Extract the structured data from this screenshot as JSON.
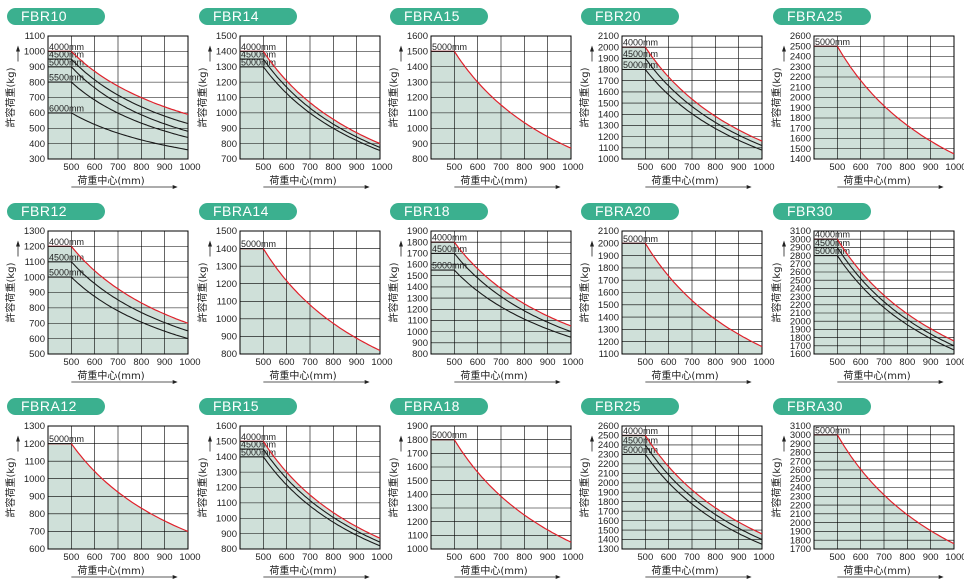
{
  "colors": {
    "badge": "#3bb08f",
    "fill": "#cfe0d9",
    "envelope": "#e0212b",
    "curve": "#1a1a1a",
    "grid": "#000000"
  },
  "common": {
    "xlabel": "荷重中心(mm)",
    "ylabel": "許容荷重(kg)",
    "xticks": [
      "500",
      "600",
      "700",
      "800",
      "900",
      "1000"
    ]
  },
  "chart_data": [
    {
      "title": "FBR10",
      "type": "line",
      "ylim": [
        300,
        1100
      ],
      "yticks": [
        300,
        400,
        500,
        600,
        700,
        800,
        900,
        1000,
        1100
      ],
      "series": [
        {
          "name": "4000mm",
          "plateau": 1000,
          "end": 590
        },
        {
          "name": "4500mm",
          "plateau": 950,
          "end": 530
        },
        {
          "name": "5000mm",
          "plateau": 900,
          "end": 480
        },
        {
          "name": "5500mm",
          "plateau": 800,
          "end": 440
        },
        {
          "name": "6000mm",
          "plateau": 600,
          "end": 360
        }
      ]
    },
    {
      "title": "FBR14",
      "type": "line",
      "ylim": [
        700,
        1500
      ],
      "yticks": [
        700,
        800,
        900,
        1000,
        1100,
        1200,
        1300,
        1400,
        1500
      ],
      "series": [
        {
          "name": "4000mm",
          "plateau": 1400,
          "end": 800
        },
        {
          "name": "4500mm",
          "plateau": 1350,
          "end": 775
        },
        {
          "name": "5000mm",
          "plateau": 1300,
          "end": 755
        }
      ]
    },
    {
      "title": "FBRA15",
      "type": "line",
      "ylim": [
        800,
        1600
      ],
      "yticks": [
        800,
        900,
        1000,
        1100,
        1200,
        1300,
        1400,
        1500,
        1600
      ],
      "series": [
        {
          "name": "5000mm",
          "plateau": 1500,
          "end": 870
        }
      ]
    },
    {
      "title": "FBR20",
      "type": "line",
      "ylim": [
        1000,
        2100
      ],
      "yticks": [
        1000,
        1100,
        1200,
        1300,
        1400,
        1500,
        1600,
        1700,
        1800,
        1900,
        2000,
        2100
      ],
      "series": [
        {
          "name": "4000mm",
          "plateau": 2000,
          "end": 1160
        },
        {
          "name": "4500mm",
          "plateau": 1900,
          "end": 1120
        },
        {
          "name": "5000mm",
          "plateau": 1800,
          "end": 1080
        }
      ]
    },
    {
      "title": "FBRA25",
      "type": "line",
      "ylim": [
        1400,
        2600
      ],
      "yticks": [
        1400,
        1500,
        1600,
        1700,
        1800,
        1900,
        2000,
        2100,
        2200,
        2300,
        2400,
        2500,
        2600
      ],
      "series": [
        {
          "name": "5000mm",
          "plateau": 2500,
          "end": 1450
        }
      ]
    },
    {
      "title": "FBR12",
      "type": "line",
      "ylim": [
        500,
        1300
      ],
      "yticks": [
        500,
        600,
        700,
        800,
        900,
        1000,
        1100,
        1200,
        1300
      ],
      "series": [
        {
          "name": "4000mm",
          "plateau": 1200,
          "end": 700
        },
        {
          "name": "4500mm",
          "plateau": 1100,
          "end": 650
        },
        {
          "name": "5000mm",
          "plateau": 1000,
          "end": 600
        }
      ]
    },
    {
      "title": "FBRA14",
      "type": "line",
      "ylim": [
        800,
        1500
      ],
      "yticks": [
        800,
        900,
        1000,
        1100,
        1200,
        1300,
        1400,
        1500
      ],
      "series": [
        {
          "name": "5000mm",
          "plateau": 1400,
          "end": 820
        }
      ]
    },
    {
      "title": "FBR18",
      "type": "line",
      "ylim": [
        800,
        1900
      ],
      "yticks": [
        800,
        900,
        1000,
        1100,
        1200,
        1300,
        1400,
        1500,
        1600,
        1700,
        1800,
        1900
      ],
      "series": [
        {
          "name": "4000mm",
          "plateau": 1800,
          "end": 1050
        },
        {
          "name": "4500mm",
          "plateau": 1700,
          "end": 1000
        },
        {
          "name": "5000mm",
          "plateau": 1550,
          "end": 950
        }
      ]
    },
    {
      "title": "FBRA20",
      "type": "line",
      "ylim": [
        1100,
        2100
      ],
      "yticks": [
        1100,
        1200,
        1300,
        1400,
        1500,
        1600,
        1700,
        1800,
        1900,
        2000,
        2100
      ],
      "series": [
        {
          "name": "5000mm",
          "plateau": 2000,
          "end": 1160
        }
      ]
    },
    {
      "title": "FBR30",
      "type": "line",
      "ylim": [
        1600,
        3100
      ],
      "yticks": [
        1600,
        1700,
        1800,
        1900,
        2000,
        2100,
        2200,
        2300,
        2400,
        2500,
        2600,
        2700,
        2800,
        2900,
        3000,
        3100
      ],
      "series": [
        {
          "name": "4000mm",
          "plateau": 3000,
          "end": 1760
        },
        {
          "name": "4500mm",
          "plateau": 2900,
          "end": 1700
        },
        {
          "name": "5000mm",
          "plateau": 2800,
          "end": 1650
        }
      ]
    },
    {
      "title": "FBRA12",
      "type": "line",
      "ylim": [
        600,
        1300
      ],
      "yticks": [
        600,
        700,
        800,
        900,
        1000,
        1100,
        1200,
        1300
      ],
      "series": [
        {
          "name": "5000mm",
          "plateau": 1200,
          "end": 700
        }
      ]
    },
    {
      "title": "FBR15",
      "type": "line",
      "ylim": [
        800,
        1600
      ],
      "yticks": [
        800,
        900,
        1000,
        1100,
        1200,
        1300,
        1400,
        1500,
        1600
      ],
      "series": [
        {
          "name": "4000mm",
          "plateau": 1500,
          "end": 870
        },
        {
          "name": "4500mm",
          "plateau": 1450,
          "end": 845
        },
        {
          "name": "5000mm",
          "plateau": 1400,
          "end": 820
        }
      ]
    },
    {
      "title": "FBRA18",
      "type": "line",
      "ylim": [
        1000,
        1900
      ],
      "yticks": [
        1000,
        1100,
        1200,
        1300,
        1400,
        1500,
        1600,
        1700,
        1800,
        1900
      ],
      "series": [
        {
          "name": "5000mm",
          "plateau": 1800,
          "end": 1050
        }
      ]
    },
    {
      "title": "FBR25",
      "type": "line",
      "ylim": [
        1300,
        2600
      ],
      "yticks": [
        1300,
        1400,
        1500,
        1600,
        1700,
        1800,
        1900,
        2000,
        2100,
        2200,
        2300,
        2400,
        2500,
        2600
      ],
      "series": [
        {
          "name": "4000mm",
          "plateau": 2500,
          "end": 1460
        },
        {
          "name": "4500mm",
          "plateau": 2400,
          "end": 1400
        },
        {
          "name": "5000mm",
          "plateau": 2300,
          "end": 1350
        }
      ]
    },
    {
      "title": "FBRA30",
      "type": "line",
      "ylim": [
        1700,
        3100
      ],
      "yticks": [
        1700,
        1800,
        1900,
        2000,
        2100,
        2200,
        2300,
        2400,
        2500,
        2600,
        2700,
        2800,
        2900,
        3000,
        3100
      ],
      "series": [
        {
          "name": "5000mm",
          "plateau": 3000,
          "end": 1760
        }
      ]
    }
  ]
}
